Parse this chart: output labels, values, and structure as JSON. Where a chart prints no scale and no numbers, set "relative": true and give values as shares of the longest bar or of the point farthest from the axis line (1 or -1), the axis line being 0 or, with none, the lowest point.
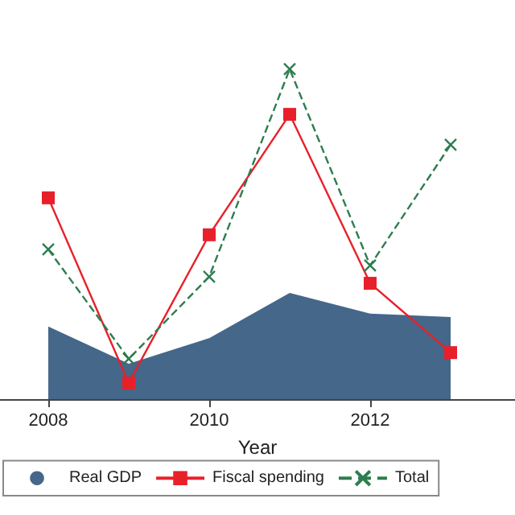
{
  "chart_data": {
    "type": "line",
    "relative": true,
    "xlabel": "Year",
    "x": [
      2008,
      2009,
      2010,
      2011,
      2012,
      2013
    ],
    "xlim": [
      2007.4,
      2013.8
    ],
    "xticks": [
      2008,
      2010,
      2012
    ],
    "legend": "bottom",
    "grid": false,
    "series": [
      {
        "name": "Real GDP",
        "type": "area",
        "color": "#44678a",
        "marker": "none",
        "values": [
          0.22,
          0.107,
          0.185,
          0.322,
          0.259,
          0.249
        ]
      },
      {
        "name": "Fiscal spending",
        "type": "line",
        "color": "#e8202a",
        "marker": "square",
        "line_style": "solid",
        "values": [
          0.61,
          0.049,
          0.498,
          0.863,
          0.351,
          0.141
        ]
      },
      {
        "name": "Total",
        "type": "line",
        "color": "#2e7d4f",
        "marker": "cross",
        "line_style": "dashed",
        "values": [
          0.454,
          0.122,
          0.371,
          1.0,
          0.405,
          0.771
        ]
      }
    ]
  }
}
